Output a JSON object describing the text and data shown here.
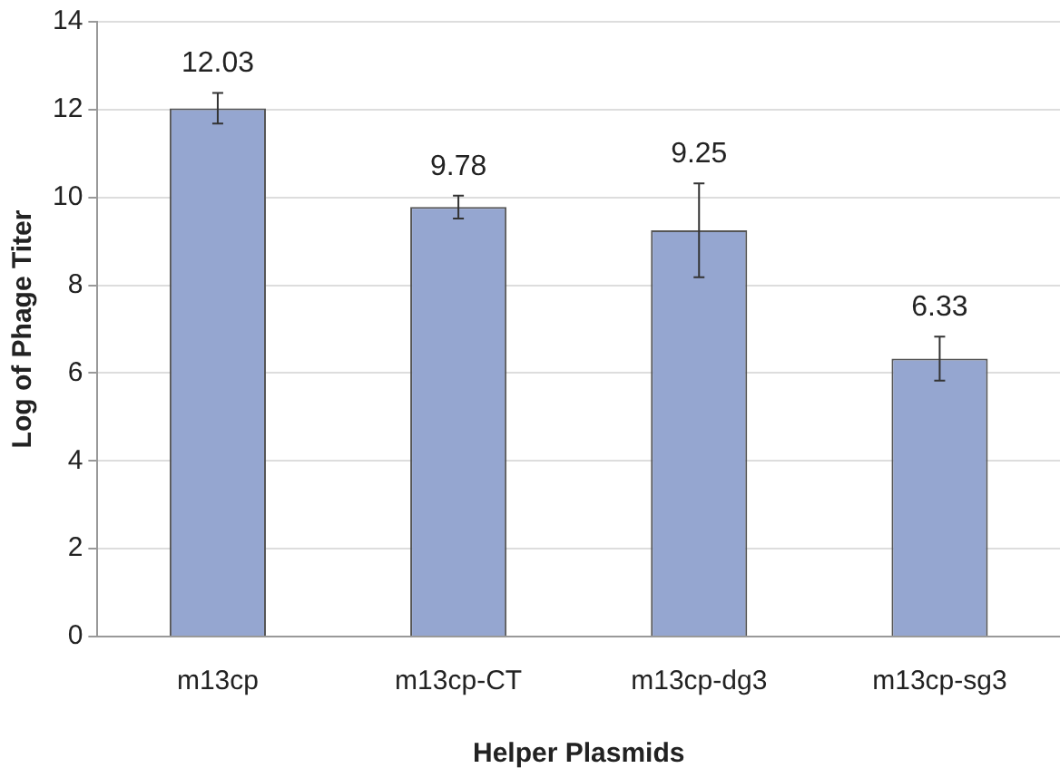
{
  "chart_data": {
    "type": "bar",
    "xlabel": "Helper Plasmids",
    "ylabel": "Log of Phage Titer",
    "categories": [
      "m13cp",
      "m13cp-CT",
      "m13cp-dg3",
      "m13cp-sg3"
    ],
    "values": [
      12.03,
      9.78,
      9.25,
      6.33
    ],
    "errors": [
      0.35,
      0.26,
      1.07,
      0.5
    ],
    "color": "#95a6d0",
    "ylim": [
      0,
      14
    ],
    "yticks": [
      0,
      2,
      4,
      6,
      8,
      10,
      12,
      14
    ],
    "grid": "y",
    "data_labels": true
  }
}
